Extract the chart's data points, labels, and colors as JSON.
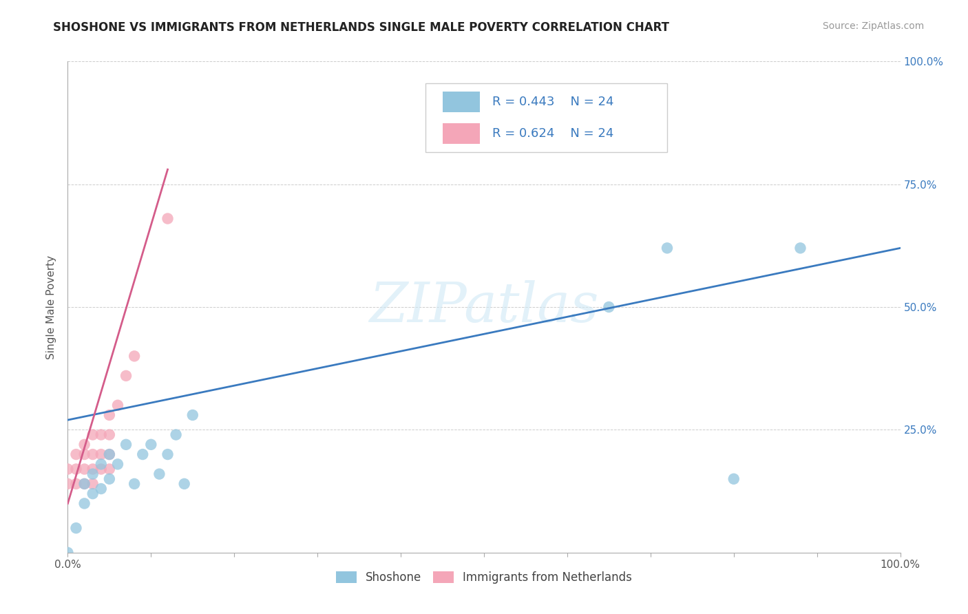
{
  "title": "SHOSHONE VS IMMIGRANTS FROM NETHERLANDS SINGLE MALE POVERTY CORRELATION CHART",
  "source": "Source: ZipAtlas.com",
  "ylabel": "Single Male Poverty",
  "shoshone_R": "R = 0.443",
  "shoshone_N": "N = 24",
  "netherlands_R": "R = 0.624",
  "netherlands_N": "N = 24",
  "blue_color": "#92c5de",
  "pink_color": "#f4a6b8",
  "blue_line_color": "#3a7abf",
  "pink_line_color": "#d45c8a",
  "shoshone_x": [
    0.0,
    0.01,
    0.02,
    0.02,
    0.03,
    0.03,
    0.04,
    0.04,
    0.05,
    0.05,
    0.06,
    0.07,
    0.08,
    0.09,
    0.1,
    0.11,
    0.12,
    0.13,
    0.14,
    0.15,
    0.65,
    0.72,
    0.8,
    0.88
  ],
  "shoshone_y": [
    0.0,
    0.05,
    0.1,
    0.14,
    0.12,
    0.16,
    0.13,
    0.18,
    0.15,
    0.2,
    0.18,
    0.22,
    0.14,
    0.2,
    0.22,
    0.16,
    0.2,
    0.24,
    0.14,
    0.28,
    0.5,
    0.62,
    0.15,
    0.62
  ],
  "netherlands_x": [
    0.0,
    0.0,
    0.01,
    0.01,
    0.01,
    0.02,
    0.02,
    0.02,
    0.02,
    0.03,
    0.03,
    0.03,
    0.03,
    0.04,
    0.04,
    0.04,
    0.05,
    0.05,
    0.05,
    0.05,
    0.06,
    0.07,
    0.08,
    0.12
  ],
  "netherlands_y": [
    0.14,
    0.17,
    0.14,
    0.17,
    0.2,
    0.14,
    0.17,
    0.2,
    0.22,
    0.14,
    0.17,
    0.2,
    0.24,
    0.17,
    0.2,
    0.24,
    0.17,
    0.2,
    0.24,
    0.28,
    0.3,
    0.36,
    0.4,
    0.68
  ],
  "xlim": [
    0.0,
    1.0
  ],
  "ylim": [
    0.0,
    1.0
  ],
  "blue_line_x0": 0.0,
  "blue_line_y0": 0.27,
  "blue_line_x1": 1.0,
  "blue_line_y1": 0.62,
  "pink_line_x0": 0.0,
  "pink_line_y0": 0.1,
  "pink_line_x1": 0.12,
  "pink_line_y1": 0.78
}
